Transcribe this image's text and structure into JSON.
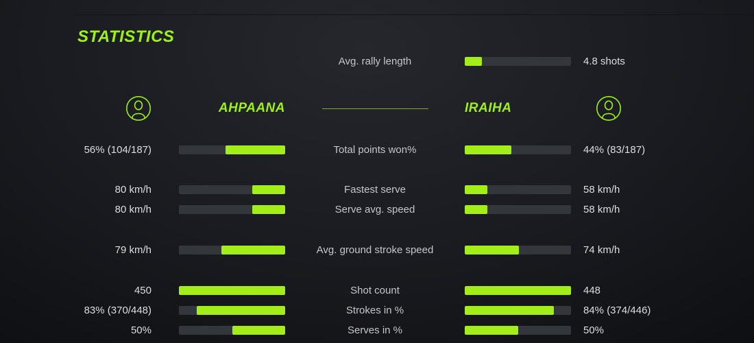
{
  "title": "STATISTICS",
  "colors": {
    "accent": "#9ef01a",
    "bar_fill": "#a3ee18",
    "bar_track": "#33363b"
  },
  "rally": {
    "label": "Avg. rally length",
    "value": "4.8 shots",
    "percent": 16
  },
  "players": {
    "left": {
      "name": "AHPAANA",
      "icon": "person-avatar-icon"
    },
    "right": {
      "name": "IRAIHA",
      "icon": "person-avatar-icon"
    }
  },
  "stats": [
    {
      "label": "Total points won%",
      "left": {
        "value": "56% (104/187)",
        "percent": 56
      },
      "right": {
        "value": "44% (83/187)",
        "percent": 44
      }
    },
    {
      "label": "Fastest serve",
      "left": {
        "value": "80 km/h",
        "percent": 31
      },
      "right": {
        "value": "58 km/h",
        "percent": 21
      }
    },
    {
      "label": "Serve avg. speed",
      "left": {
        "value": "80 km/h",
        "percent": 31
      },
      "right": {
        "value": "58 km/h",
        "percent": 21
      }
    },
    {
      "label": "Avg. ground stroke speed",
      "left": {
        "value": "79 km/h",
        "percent": 60
      },
      "right": {
        "value": "74 km/h",
        "percent": 51
      }
    },
    {
      "label": "Shot count",
      "left": {
        "value": "450",
        "percent": 100
      },
      "right": {
        "value": "448",
        "percent": 100
      }
    },
    {
      "label": "Strokes in %",
      "left": {
        "value": "83% (370/448)",
        "percent": 83
      },
      "right": {
        "value": "84% (374/446)",
        "percent": 84
      }
    },
    {
      "label": "Serves in %",
      "left": {
        "value": "50%",
        "percent": 50
      },
      "right": {
        "value": "50%",
        "percent": 50
      }
    }
  ]
}
